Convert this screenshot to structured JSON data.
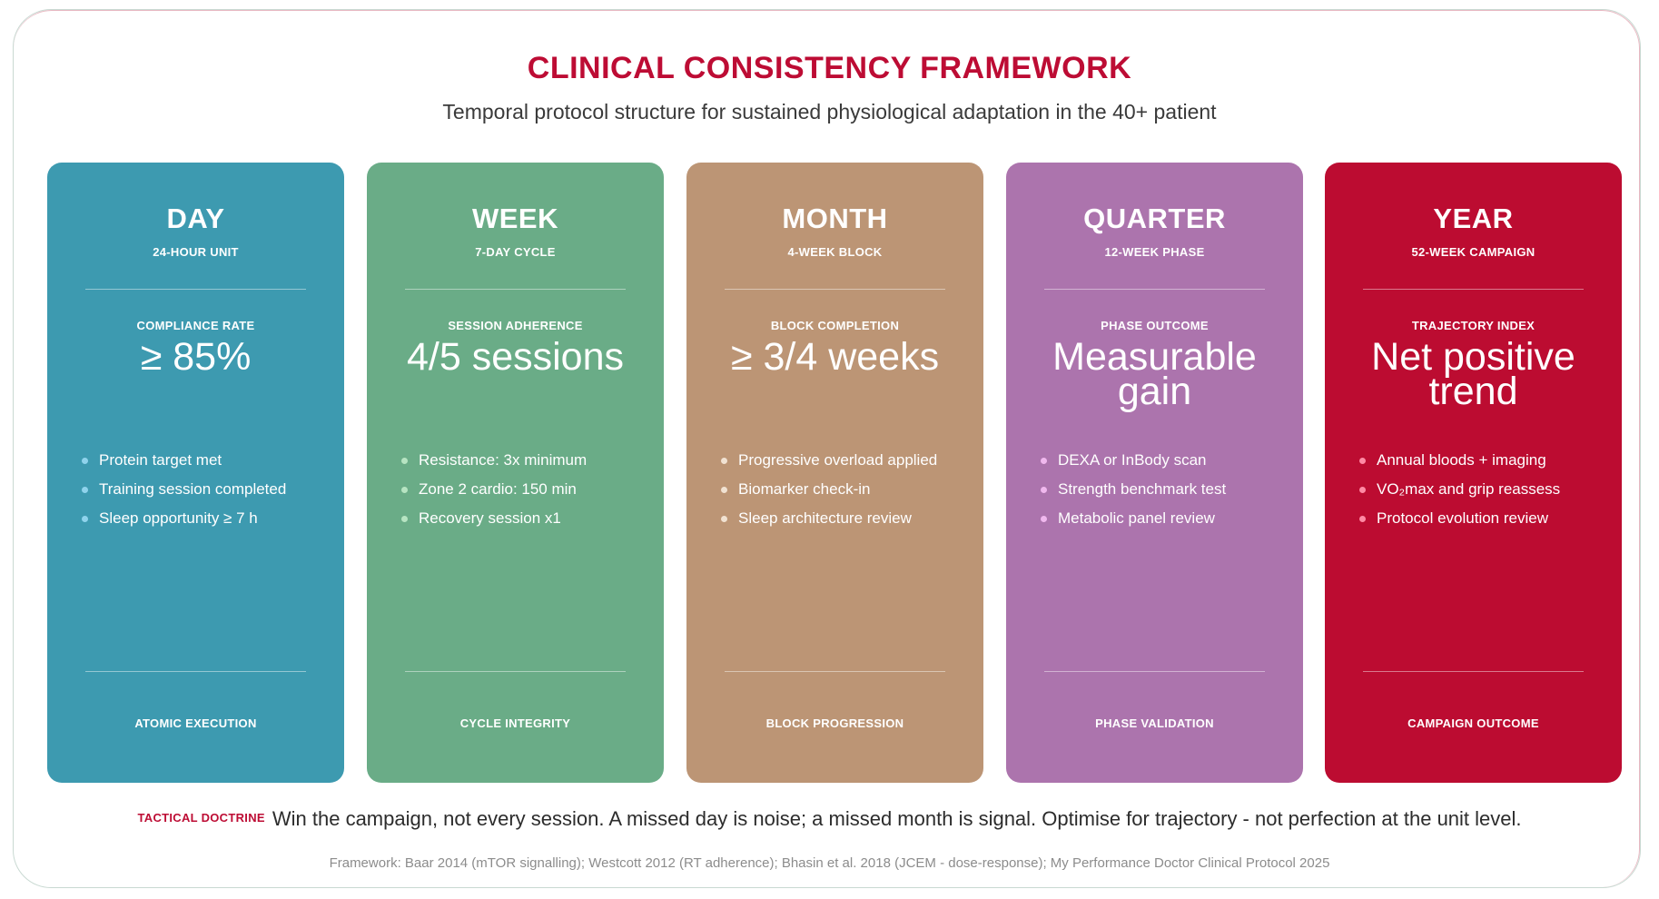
{
  "header": {
    "title": "CLINICAL CONSISTENCY FRAMEWORK",
    "subtitle": "Temporal protocol structure for sustained physiological adaptation in the 40+ patient"
  },
  "cards": [
    {
      "title": "DAY",
      "subtitle": "24-HOUR UNIT",
      "metric_label": "COMPLIANCE RATE",
      "metric_value": "≥ 85%",
      "bullets": [
        "Protein target met",
        "Training session completed",
        "Sleep opportunity ≥ 7 h"
      ],
      "footer": "ATOMIC EXECUTION",
      "color": "#3d9ab0",
      "dot_color": "#8fd3ec"
    },
    {
      "title": "WEEK",
      "subtitle": "7-DAY CYCLE",
      "metric_label": "SESSION ADHERENCE",
      "metric_value": "4/5 sessions",
      "bullets": [
        "Resistance: 3x minimum",
        "Zone 2 cardio: 150 min",
        "Recovery session x1"
      ],
      "footer": "CYCLE INTEGRITY",
      "color": "#6aac87",
      "dot_color": "#b7e4c2"
    },
    {
      "title": "MONTH",
      "subtitle": "4-WEEK BLOCK",
      "metric_label": "BLOCK COMPLETION",
      "metric_value": "≥ 3/4 weeks",
      "bullets": [
        "Progressive overload applied",
        "Biomarker check-in",
        "Sleep architecture review"
      ],
      "footer": "BLOCK PROGRESSION",
      "color": "#bc9575",
      "dot_color": "#f1e2d2"
    },
    {
      "title": "QUARTER",
      "subtitle": "12-WEEK PHASE",
      "metric_label": "PHASE OUTCOME",
      "metric_value": "Measurable\ngain",
      "bullets": [
        "DEXA or InBody scan",
        "Strength benchmark test",
        "Metabolic panel review"
      ],
      "footer": "PHASE VALIDATION",
      "color": "#ac74ad",
      "dot_color": "#f0b8ee"
    },
    {
      "title": "YEAR",
      "subtitle": "52-WEEK CAMPAIGN",
      "metric_label": "TRAJECTORY INDEX",
      "metric_value": "Net positive\ntrend",
      "bullets": [
        "Annual bloods + imaging",
        "VO₂max and grip reassess",
        "Protocol evolution review"
      ],
      "footer": "CAMPAIGN OUTCOME",
      "color": "#bc0c31",
      "dot_color": "#ff8aa4"
    }
  ],
  "doctrine": {
    "label": "TACTICAL DOCTRINE",
    "text": "Win the campaign, not every session. A missed day is noise; a missed month is signal. Optimise for trajectory - not perfection at the unit level."
  },
  "footnote": "Framework: Baar 2014 (mTOR signalling); Westcott 2012 (RT adherence); Bhasin et al. 2018 (JCEM - dose-response); My Performance Doctor Clinical Protocol 2025"
}
